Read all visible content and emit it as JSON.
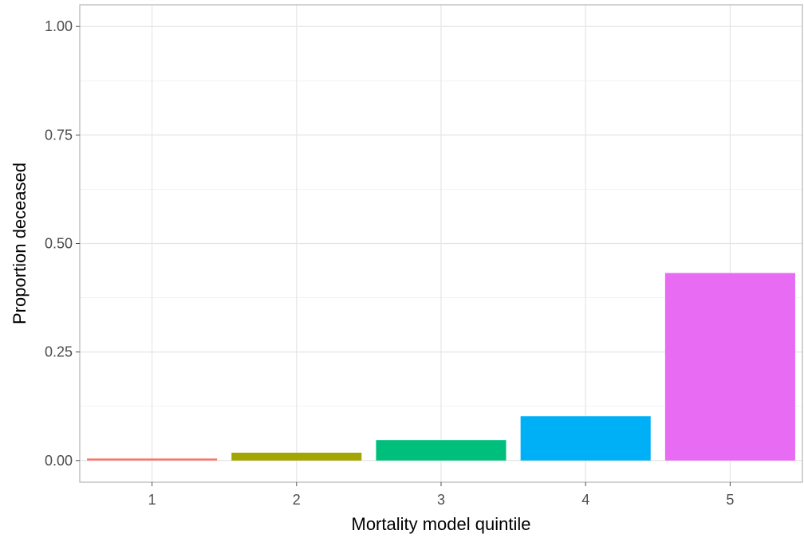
{
  "chart_data": {
    "type": "bar",
    "categories": [
      "1",
      "2",
      "3",
      "4",
      "5"
    ],
    "values": [
      0.004,
      0.018,
      0.047,
      0.102,
      0.432
    ],
    "colors": [
      "#F8766D",
      "#A3A500",
      "#00BF7D",
      "#00B0F6",
      "#E76BF3"
    ],
    "xlabel": "Mortality model quintile",
    "ylabel": "Proportion deceased",
    "ylim": [
      -0.05,
      1.05
    ],
    "yticks": [
      0.0,
      0.25,
      0.5,
      0.75,
      1.0
    ],
    "ytick_labels": [
      "0.00",
      "0.25",
      "0.50",
      "0.75",
      "1.00"
    ],
    "grid": true,
    "legend": "none"
  }
}
